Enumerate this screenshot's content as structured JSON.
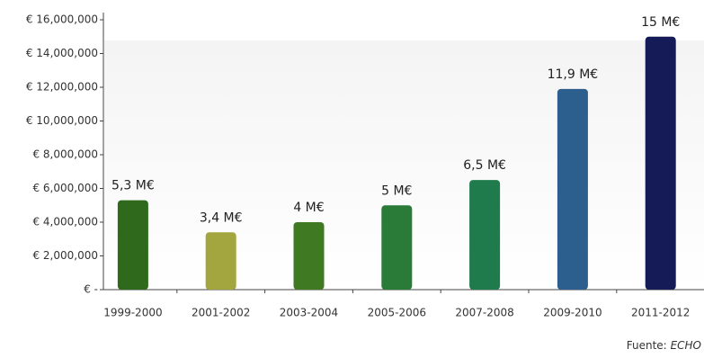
{
  "chart_data": {
    "type": "bar",
    "categories": [
      "1999-2000",
      "2001-2002",
      "2003-2004",
      "2005-2006",
      "2007-2008",
      "2009-2010",
      "2011-2012"
    ],
    "values": [
      5300000,
      3400000,
      4000000,
      5000000,
      6500000,
      11900000,
      15000000
    ],
    "value_labels": [
      "5,3 M€",
      "3,4 M€",
      "4 M€",
      "5 M€",
      "6,5 M€",
      "11,9 M€",
      "15 M€"
    ],
    "colors": [
      "#2f6a1c",
      "#a3a53e",
      "#3f7a22",
      "#2a7a38",
      "#1f7b4c",
      "#2c5f8e",
      "#141b57"
    ],
    "ylim": [
      0,
      16000000
    ],
    "yticks": [
      {
        "value": 0,
        "label": "€ -"
      },
      {
        "value": 2000000,
        "label": "€ 2,000,000"
      },
      {
        "value": 4000000,
        "label": "€ 4,000,000"
      },
      {
        "value": 6000000,
        "label": "€ 6,000,000"
      },
      {
        "value": 8000000,
        "label": "€ 8,000,000"
      },
      {
        "value": 10000000,
        "label": "€ 10,000,000"
      },
      {
        "value": 12000000,
        "label": "€ 12,000,000"
      },
      {
        "value": 14000000,
        "label": "€ 14,000,000"
      },
      {
        "value": 16000000,
        "label": "€ 16,000,000"
      }
    ],
    "grid": false,
    "source": {
      "prefix": "Fuente:",
      "name": "ECHO"
    }
  }
}
